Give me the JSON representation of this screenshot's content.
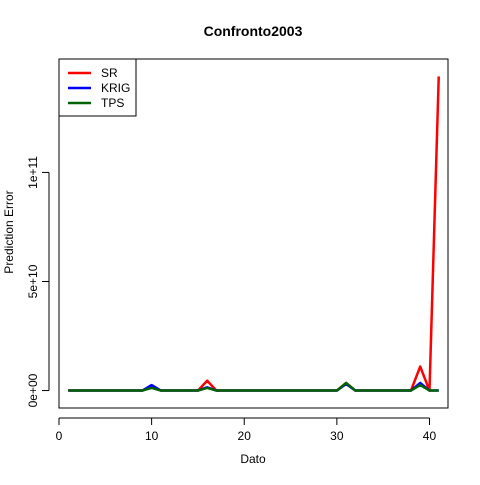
{
  "chart_data": {
    "type": "line",
    "title": "Confronto2003",
    "xlabel": "Dato",
    "ylabel": "Prediction Error",
    "xlim": [
      0,
      42
    ],
    "ylim": [
      -8000000000,
      152000000000
    ],
    "xticks": [
      0,
      10,
      20,
      30,
      40
    ],
    "xtick_labels": [
      "0",
      "10",
      "20",
      "30",
      "40"
    ],
    "yticks": [
      0,
      50000000000,
      100000000000
    ],
    "ytick_labels": [
      "0e+00",
      "5e+10",
      "1e+11"
    ],
    "grid": false,
    "legend_position": "top-left",
    "x": [
      1,
      2,
      3,
      4,
      5,
      6,
      7,
      8,
      9,
      10,
      11,
      12,
      13,
      14,
      15,
      16,
      17,
      18,
      19,
      20,
      21,
      22,
      23,
      24,
      25,
      26,
      27,
      28,
      29,
      30,
      31,
      32,
      33,
      34,
      35,
      36,
      37,
      38,
      39,
      40,
      41
    ],
    "series": [
      {
        "name": "SR",
        "color": "#ff0000",
        "values": [
          0,
          0,
          0,
          0,
          0,
          0,
          0,
          0,
          0,
          1500000000,
          0,
          0,
          0,
          0,
          0,
          4500000000,
          0,
          0,
          0,
          0,
          0,
          0,
          0,
          0,
          0,
          0,
          0,
          0,
          0,
          0,
          3500000000,
          0,
          0,
          0,
          0,
          0,
          0,
          0,
          11000000000,
          0,
          144000000000
        ]
      },
      {
        "name": "KRIG",
        "color": "#0000ff",
        "values": [
          0,
          0,
          0,
          0,
          0,
          0,
          0,
          0,
          0,
          2500000000,
          0,
          0,
          0,
          0,
          0,
          1500000000,
          0,
          0,
          0,
          0,
          0,
          0,
          0,
          0,
          0,
          0,
          0,
          0,
          0,
          0,
          3000000000,
          0,
          0,
          0,
          0,
          0,
          0,
          0,
          3500000000,
          0,
          0
        ]
      },
      {
        "name": "TPS",
        "color": "#006400",
        "values": [
          0,
          0,
          0,
          0,
          0,
          0,
          0,
          0,
          0,
          1200000000,
          0,
          0,
          0,
          0,
          0,
          1200000000,
          0,
          0,
          0,
          0,
          0,
          0,
          0,
          0,
          0,
          0,
          0,
          0,
          0,
          0,
          3500000000,
          0,
          0,
          0,
          0,
          0,
          0,
          0,
          2500000000,
          0,
          0
        ]
      }
    ]
  }
}
